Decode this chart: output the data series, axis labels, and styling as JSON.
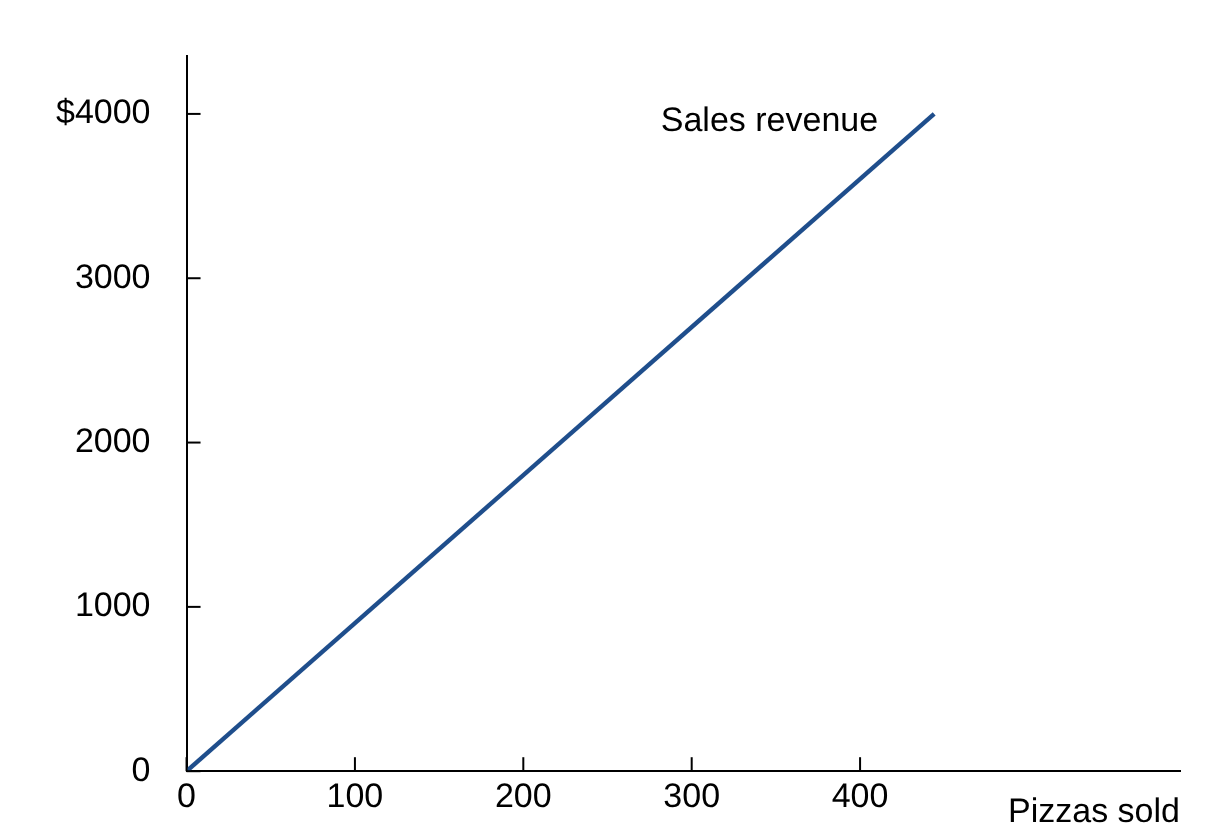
{
  "chart_data": {
    "type": "line",
    "xlabel": "Pizzas sold",
    "x": [
      0,
      444
    ],
    "series": [
      {
        "name": "Sales revenue",
        "color": "#1f4e8c",
        "values": [
          0,
          4000
        ]
      }
    ],
    "xlim": [
      0,
      590
    ],
    "ylim": [
      0,
      4350
    ],
    "xticks": [
      0,
      100,
      200,
      300,
      400
    ],
    "yticks": [
      0,
      1000,
      2000,
      3000,
      {
        "value": 4000,
        "label": "$4000"
      }
    ],
    "grid": false,
    "legend": false,
    "marker": "none",
    "line_style": "solid"
  }
}
